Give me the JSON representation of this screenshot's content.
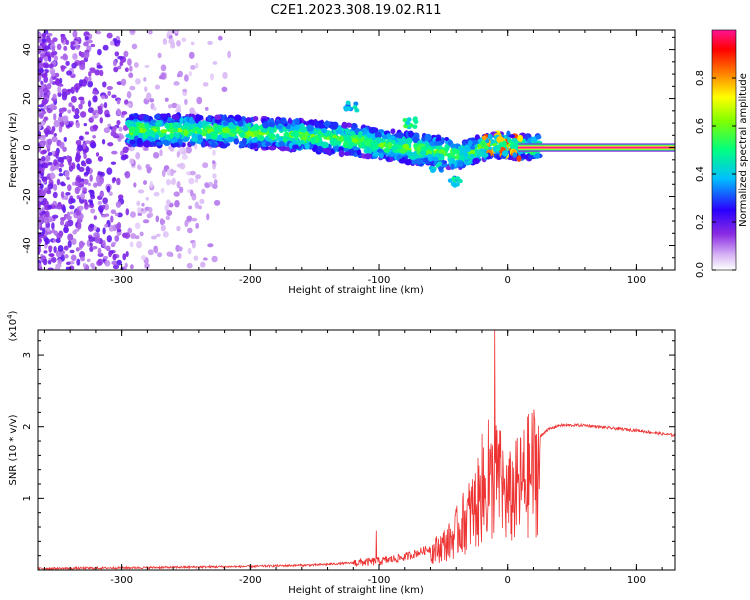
{
  "title": "C2E1.2023.308.19.02.R11",
  "chart_data": [
    {
      "type": "heatmap",
      "xlabel": "Height of straight line (km)",
      "ylabel": "Frequency (Hz)",
      "xlim": [
        -365,
        130
      ],
      "ylim": [
        -50,
        48
      ],
      "xticks": [
        -300,
        -200,
        -100,
        0,
        100
      ],
      "yticks": [
        -40,
        -20,
        0,
        20,
        40
      ],
      "colorbar": {
        "label": "Normalized spectral amplitude",
        "range": [
          0,
          1
        ],
        "ticks": [
          "0.0",
          "0.2",
          "0.4",
          "0.6",
          "0.8"
        ],
        "colors": [
          "#ffffff",
          "#d9b8f5",
          "#8a2be2",
          "#2a00ff",
          "#00bfff",
          "#00ff80",
          "#7fff00",
          "#ffff00",
          "#ff8000",
          "#ff0000",
          "#ff1493"
        ]
      },
      "ridge": {
        "x": [
          -290,
          -250,
          -200,
          -160,
          -120,
          -80,
          -50,
          -35,
          -20,
          -10,
          0,
          10,
          130
        ],
        "y": [
          7,
          7,
          6,
          5,
          3,
          0,
          -2,
          -3,
          0,
          1,
          1,
          0,
          0
        ]
      },
      "grid": false
    },
    {
      "type": "line",
      "xlabel": "Height of straight line (km)",
      "ylabel": "SNR (10 * v/v)",
      "multiplier_label": "(x10",
      "multiplier_exp": "4",
      "multiplier_close": ")",
      "xlim": [
        -365,
        130
      ],
      "ylim": [
        0,
        3.35
      ],
      "xticks": [
        -300,
        -200,
        -100,
        0,
        100
      ],
      "yticks": [
        1,
        2,
        3
      ],
      "color": "#ee3333",
      "envelope": {
        "x": [
          -365,
          -300,
          -200,
          -150,
          -100,
          -80,
          -60,
          -45,
          -35,
          -25,
          -15,
          -8,
          0,
          10,
          20,
          30,
          40,
          60,
          80,
          100,
          120,
          130
        ],
        "y": [
          0.02,
          0.03,
          0.05,
          0.07,
          0.12,
          0.18,
          0.3,
          0.5,
          0.8,
          1.1,
          1.4,
          1.6,
          1.2,
          1.45,
          1.75,
          1.95,
          2.02,
          2.02,
          1.98,
          1.95,
          1.9,
          1.88
        ]
      },
      "spikes": [
        {
          "x": -10,
          "y": 3.35
        },
        {
          "x": -15,
          "y": 2.1
        },
        {
          "x": -20,
          "y": 1.9
        },
        {
          "x": -102,
          "y": 0.55
        },
        {
          "x": -5,
          "y": 1.3
        }
      ],
      "grid": false
    }
  ]
}
